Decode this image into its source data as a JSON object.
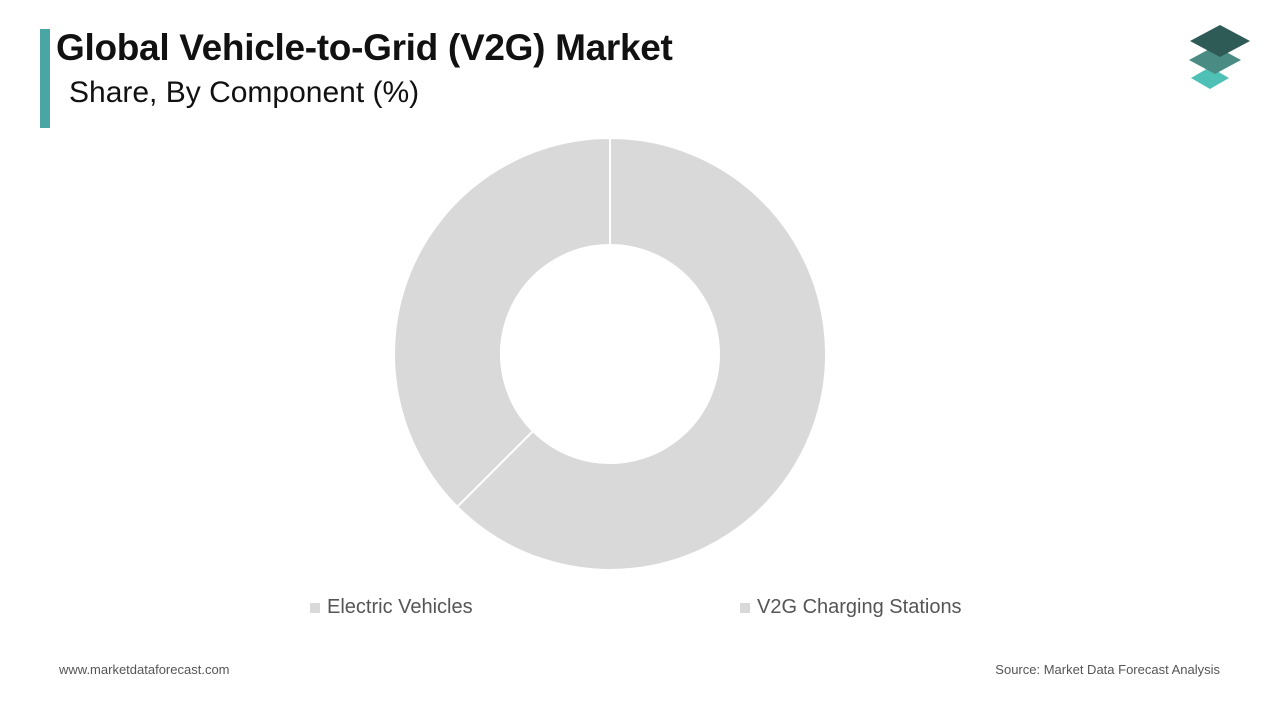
{
  "header": {
    "title": "Global Vehicle-to-Grid (V2G) Market",
    "subtitle": "Share, By Component (%)",
    "accent_color": "#4aa6a3"
  },
  "logo": {
    "icon": "stacked-layers-icon",
    "colors": [
      "#2e5b55",
      "#4a8c84",
      "#4fc0b6"
    ]
  },
  "chart_data": {
    "type": "pie",
    "donut": true,
    "title": "Global Vehicle-to-Grid (V2G) Market",
    "subtitle": "Share, By Component (%)",
    "categories": [
      "Electric Vehicles",
      "V2G Charging Stations"
    ],
    "values": [
      62.5,
      37.5
    ],
    "colors": [
      "#d9d9d9",
      "#d9d9d9"
    ],
    "legend_position": "bottom",
    "show_data_labels": false
  },
  "footer": {
    "website": "www.marketdataforecast.com",
    "source": "Source: Market Data Forecast Analysis"
  }
}
